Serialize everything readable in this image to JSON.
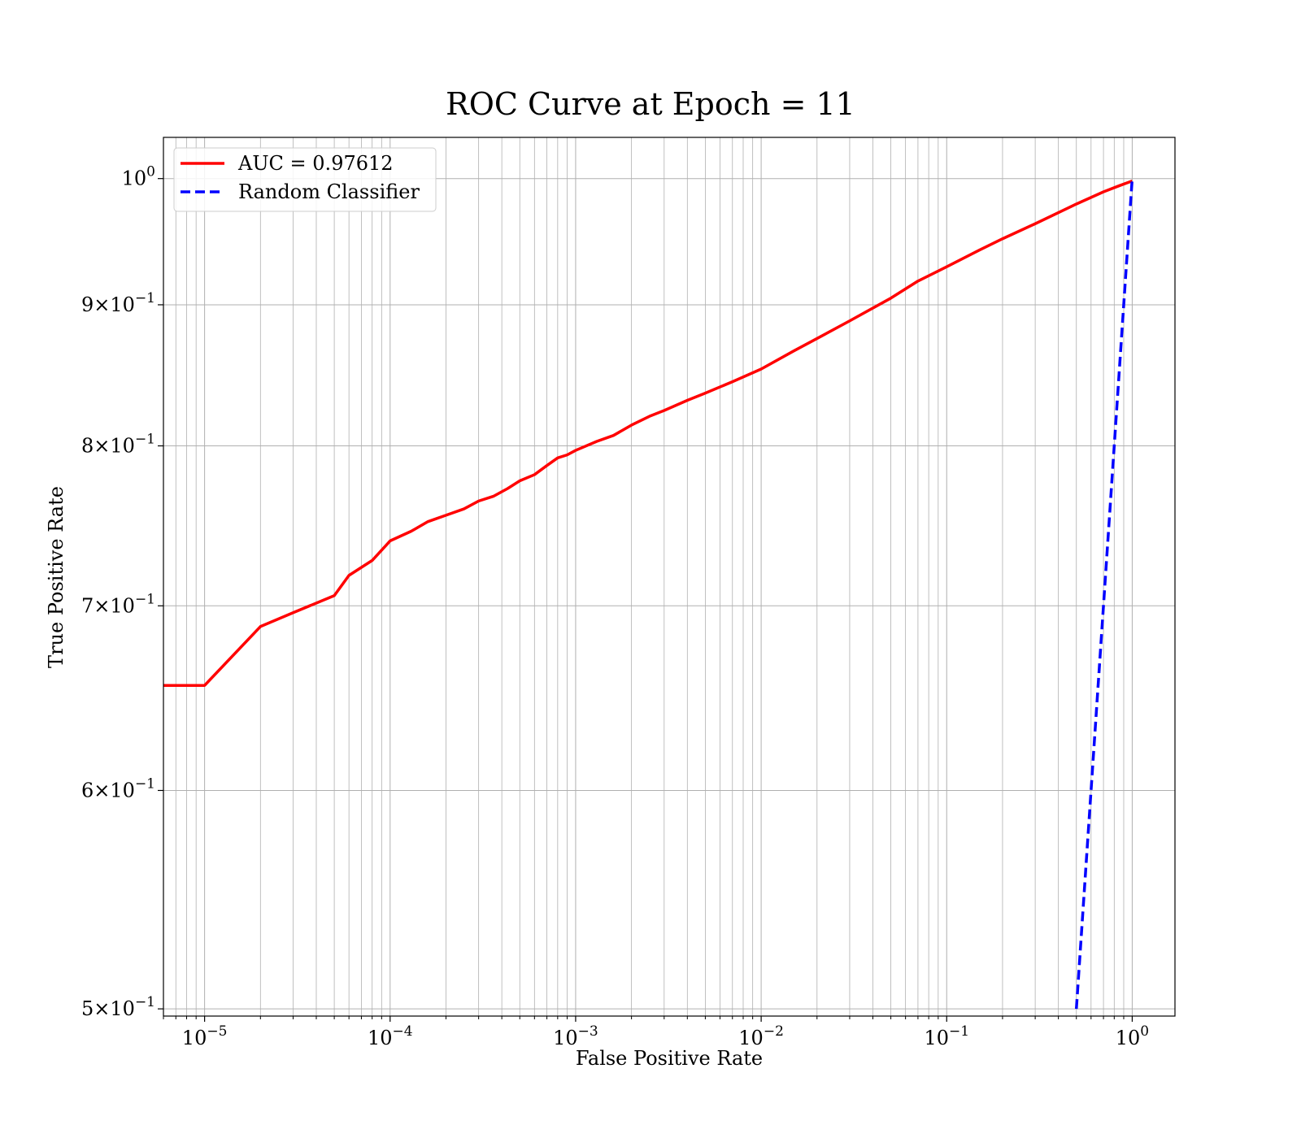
{
  "chart_data": {
    "type": "line",
    "title": "ROC Curve at Epoch = 11",
    "xlabel": "False Positive Rate",
    "ylabel": "True Positive Rate",
    "xscale": "log",
    "yscale": "log",
    "xlim": [
      6e-06,
      1.7
    ],
    "ylim": [
      0.497,
      1.035
    ],
    "grid": "major and minor",
    "legend_position": "upper-left",
    "x_ticks": [
      {
        "value": 1e-05,
        "base": "10",
        "exp": "−5"
      },
      {
        "value": 0.0001,
        "base": "10",
        "exp": "−4"
      },
      {
        "value": 0.001,
        "base": "10",
        "exp": "−3"
      },
      {
        "value": 0.01,
        "base": "10",
        "exp": "−2"
      },
      {
        "value": 0.1,
        "base": "10",
        "exp": "−1"
      },
      {
        "value": 1,
        "base": "10",
        "exp": "0"
      }
    ],
    "y_ticks": [
      {
        "value": 1.0,
        "base": "10",
        "exp": "0"
      },
      {
        "value": 0.9,
        "base": "9×10",
        "exp": "−1"
      },
      {
        "value": 0.8,
        "base": "8×10",
        "exp": "−1"
      },
      {
        "value": 0.7,
        "base": "7×10",
        "exp": "−1"
      },
      {
        "value": 0.6,
        "base": "6×10",
        "exp": "−1"
      },
      {
        "value": 0.5,
        "base": "5×10",
        "exp": "−1"
      }
    ],
    "series": [
      {
        "name": "AUC = 0.97612",
        "color": "#ff0000",
        "style": "solid",
        "x": [
          6e-06,
          1e-05,
          2e-05,
          3e-05,
          5e-05,
          6e-05,
          8e-05,
          0.0001,
          0.00013,
          0.00016,
          0.0002,
          0.00025,
          0.0003,
          0.00036,
          0.00043,
          0.0005,
          0.0006,
          0.0007,
          0.0008,
          0.0009,
          0.001,
          0.0013,
          0.0016,
          0.002,
          0.0025,
          0.003,
          0.004,
          0.005,
          0.007,
          0.01,
          0.015,
          0.02,
          0.03,
          0.05,
          0.07,
          0.1,
          0.15,
          0.2,
          0.3,
          0.5,
          0.7,
          0.85,
          1.0
        ],
        "y": [
          0.655,
          0.655,
          0.688,
          0.696,
          0.706,
          0.718,
          0.727,
          0.739,
          0.745,
          0.751,
          0.755,
          0.759,
          0.764,
          0.767,
          0.772,
          0.777,
          0.781,
          0.787,
          0.792,
          0.794,
          0.797,
          0.803,
          0.807,
          0.814,
          0.82,
          0.824,
          0.831,
          0.836,
          0.844,
          0.853,
          0.866,
          0.875,
          0.888,
          0.905,
          0.918,
          0.929,
          0.942,
          0.951,
          0.963,
          0.979,
          0.989,
          0.994,
          0.998
        ]
      },
      {
        "name": "Random Classifier",
        "color": "#0000ff",
        "style": "dashed",
        "x": [
          0.5,
          1.0
        ],
        "y": [
          0.5,
          1.0
        ]
      }
    ]
  }
}
